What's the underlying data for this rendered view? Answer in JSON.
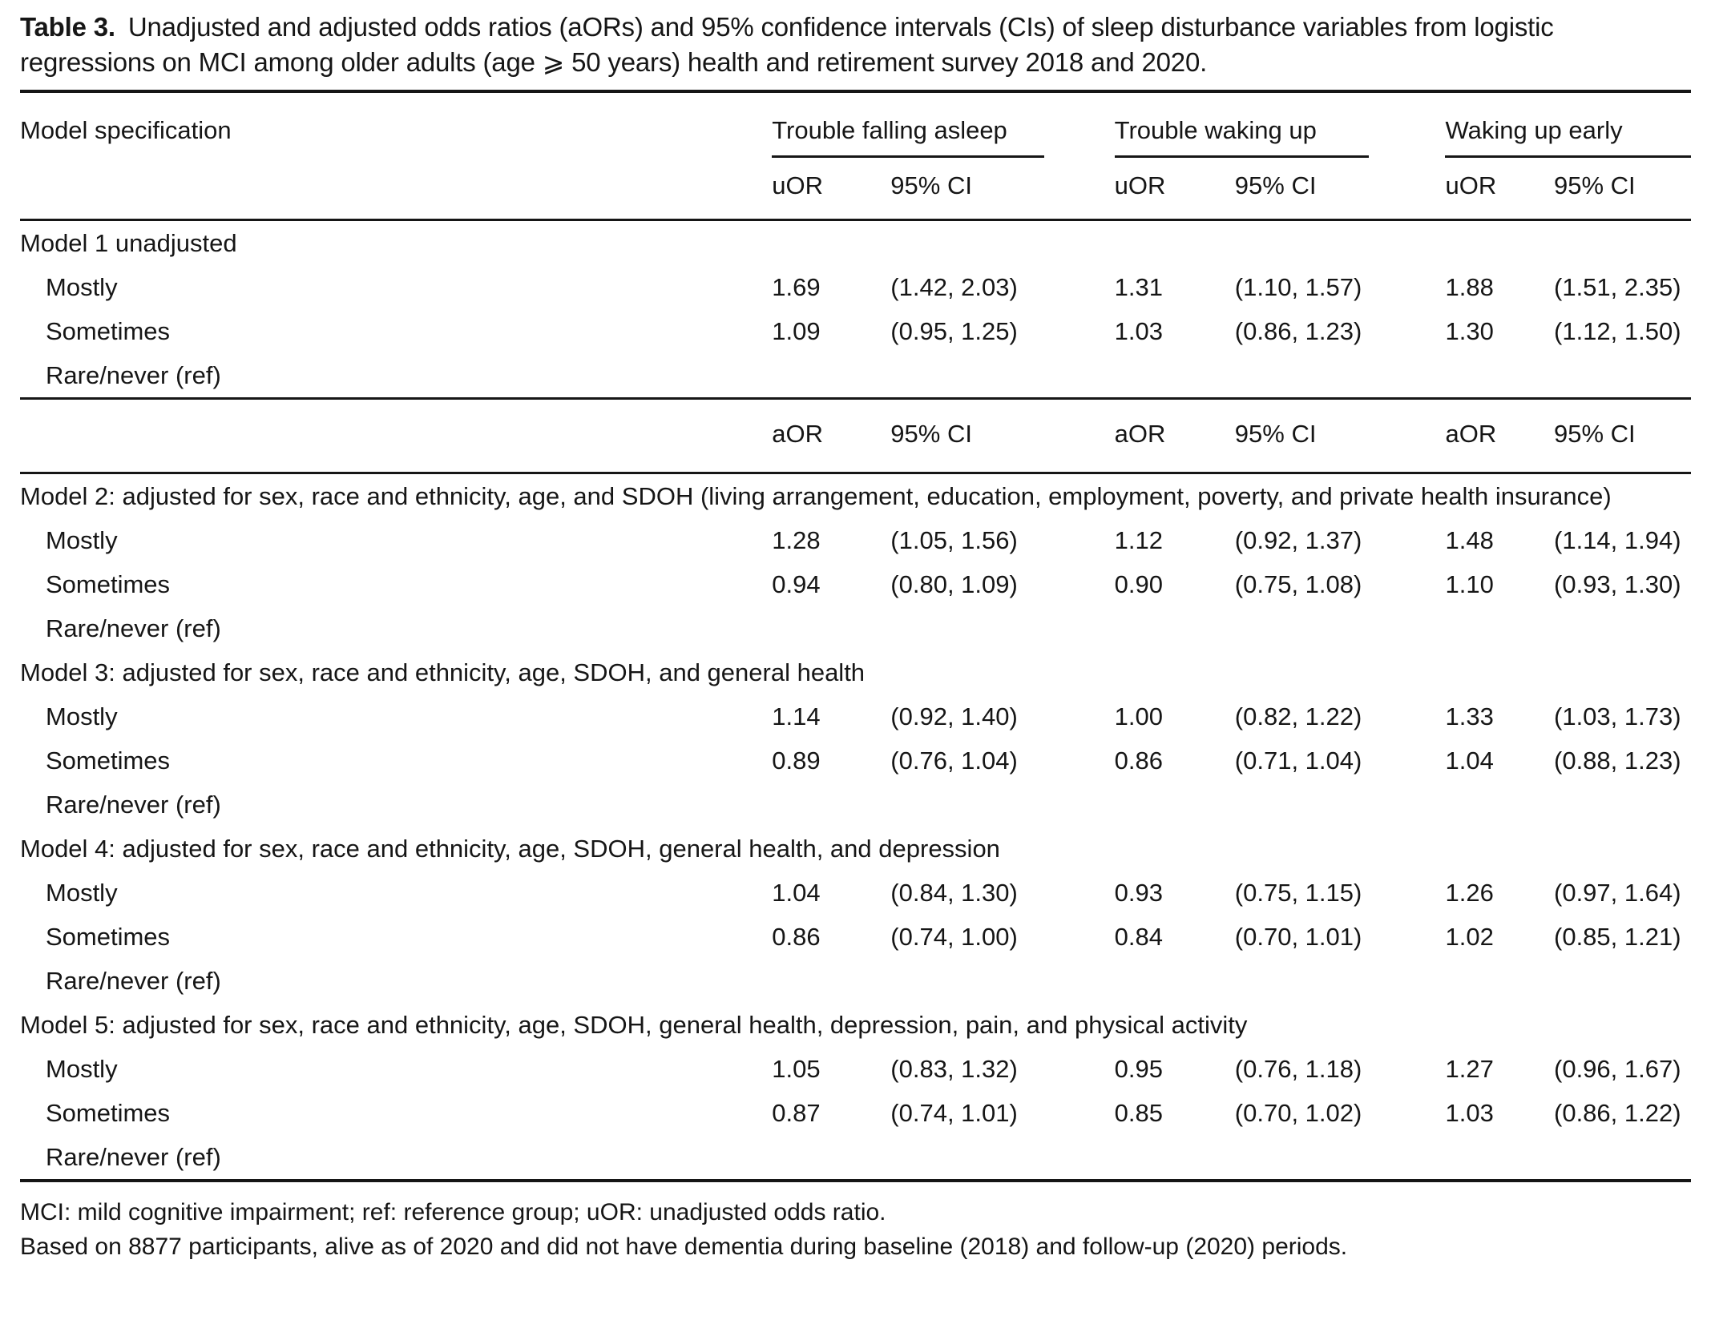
{
  "title": {
    "number": "Table 3.",
    "caption": "Unadjusted and adjusted odds ratios (aORs) and 95% confidence intervals (CIs) of sleep disturbance variables from logistic regressions on MCI among older adults (age ⩾ 50 years) health and retirement survey 2018 and 2020."
  },
  "table": {
    "stub_header": "Model specification",
    "group_headers": [
      "Trouble falling asleep",
      "Trouble waking up",
      "Waking up early"
    ],
    "uor_subheaders": [
      "uOR",
      "95% CI",
      "uOR",
      "95% CI",
      "uOR",
      "95% CI"
    ],
    "aor_subheaders": [
      "aOR",
      "95% CI",
      "aOR",
      "95% CI",
      "aOR",
      "95% CI"
    ],
    "sections": [
      {
        "heading": "Model 1 unadjusted",
        "rows": [
          {
            "label": "Mostly",
            "cells": [
              "1.69",
              "(1.42, 2.03)",
              "1.31",
              "(1.10, 1.57)",
              "1.88",
              "(1.51, 2.35)"
            ]
          },
          {
            "label": "Sometimes",
            "cells": [
              "1.09",
              "(0.95, 1.25)",
              "1.03",
              "(0.86, 1.23)",
              "1.30",
              "(1.12, 1.50)"
            ]
          },
          {
            "label": "Rare/never (ref)",
            "cells": [
              "",
              "",
              "",
              "",
              "",
              ""
            ]
          }
        ]
      },
      {
        "heading": "Model 2: adjusted for sex, race and ethnicity, age, and SDOH (living arrangement, education, employment, poverty, and private health insurance)",
        "rows": [
          {
            "label": "Mostly",
            "cells": [
              "1.28",
              "(1.05, 1.56)",
              "1.12",
              "(0.92, 1.37)",
              "1.48",
              "(1.14, 1.94)"
            ]
          },
          {
            "label": "Sometimes",
            "cells": [
              "0.94",
              "(0.80, 1.09)",
              "0.90",
              "(0.75, 1.08)",
              "1.10",
              "(0.93, 1.30)"
            ]
          },
          {
            "label": "Rare/never (ref)",
            "cells": [
              "",
              "",
              "",
              "",
              "",
              ""
            ]
          }
        ]
      },
      {
        "heading": "Model 3: adjusted for sex, race and ethnicity, age, SDOH, and general health",
        "rows": [
          {
            "label": "Mostly",
            "cells": [
              "1.14",
              "(0.92, 1.40)",
              "1.00",
              "(0.82, 1.22)",
              "1.33",
              "(1.03, 1.73)"
            ]
          },
          {
            "label": "Sometimes",
            "cells": [
              "0.89",
              "(0.76, 1.04)",
              "0.86",
              "(0.71, 1.04)",
              "1.04",
              "(0.88, 1.23)"
            ]
          },
          {
            "label": "Rare/never (ref)",
            "cells": [
              "",
              "",
              "",
              "",
              "",
              ""
            ]
          }
        ]
      },
      {
        "heading": "Model 4: adjusted for sex, race and ethnicity, age, SDOH, general health, and depression",
        "rows": [
          {
            "label": "Mostly",
            "cells": [
              "1.04",
              "(0.84, 1.30)",
              "0.93",
              "(0.75, 1.15)",
              "1.26",
              "(0.97, 1.64)"
            ]
          },
          {
            "label": "Sometimes",
            "cells": [
              "0.86",
              "(0.74, 1.00)",
              "0.84",
              "(0.70, 1.01)",
              "1.02",
              "(0.85, 1.21)"
            ]
          },
          {
            "label": "Rare/never (ref)",
            "cells": [
              "",
              "",
              "",
              "",
              "",
              ""
            ]
          }
        ]
      },
      {
        "heading": "Model 5: adjusted for sex, race and ethnicity, age, SDOH, general health, depression, pain, and physical activity",
        "rows": [
          {
            "label": "Mostly",
            "cells": [
              "1.05",
              "(0.83, 1.32)",
              "0.95",
              "(0.76, 1.18)",
              "1.27",
              "(0.96, 1.67)"
            ]
          },
          {
            "label": "Sometimes",
            "cells": [
              "0.87",
              "(0.74, 1.01)",
              "0.85",
              "(0.70, 1.02)",
              "1.03",
              "(0.86, 1.22)"
            ]
          },
          {
            "label": "Rare/never (ref)",
            "cells": [
              "",
              "",
              "",
              "",
              "",
              ""
            ]
          }
        ]
      }
    ],
    "footnotes": [
      "MCI: mild cognitive impairment; ref: reference group; uOR: unadjusted odds ratio.",
      "Based on 8877 participants, alive as of 2020 and did not have dementia during baseline (2018) and follow-up (2020) periods."
    ]
  }
}
